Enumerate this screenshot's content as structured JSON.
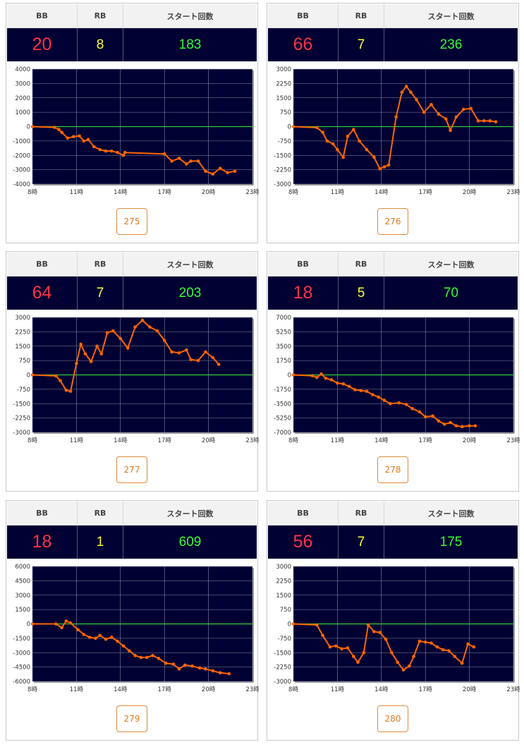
{
  "headers": {
    "bb": "BB",
    "rb": "RB",
    "start": "スタート回数"
  },
  "colors": {
    "bb": "#ff3344",
    "rb": "#ffff33",
    "start": "#33ff33",
    "chart_bg": "#000033",
    "line": "#ff6600",
    "zero_line": "#33cc33"
  },
  "machines": [
    {
      "bb": "20",
      "rb": "8",
      "start": "183",
      "number": "275",
      "chart_data": {
        "type": "line",
        "ylim": [
          -4000,
          4000
        ],
        "yticks": [
          "4000",
          "3000",
          "2000",
          "1000",
          "0",
          "-1000",
          "-2000",
          "-3000",
          "-4000"
        ],
        "xticks": [
          "8時",
          "11時",
          "14時",
          "17時",
          "20時",
          "23時"
        ],
        "points": [
          [
            8,
            0
          ],
          [
            9.5,
            -50
          ],
          [
            9.8,
            -200
          ],
          [
            10,
            -400
          ],
          [
            10.4,
            -800
          ],
          [
            10.8,
            -700
          ],
          [
            11.2,
            -650
          ],
          [
            11.5,
            -1000
          ],
          [
            11.8,
            -900
          ],
          [
            12.2,
            -1400
          ],
          [
            12.6,
            -1600
          ],
          [
            13,
            -1700
          ],
          [
            13.4,
            -1700
          ],
          [
            13.8,
            -1800
          ],
          [
            14.2,
            -2000
          ],
          [
            14.3,
            -1800
          ],
          [
            17,
            -1900
          ],
          [
            17.5,
            -2400
          ],
          [
            18,
            -2200
          ],
          [
            18.5,
            -2600
          ],
          [
            18.8,
            -2400
          ],
          [
            19.3,
            -2400
          ],
          [
            19.8,
            -3100
          ],
          [
            20.3,
            -3300
          ],
          [
            20.8,
            -2900
          ],
          [
            21.3,
            -3200
          ],
          [
            21.8,
            -3100
          ]
        ]
      }
    },
    {
      "bb": "66",
      "rb": "7",
      "start": "236",
      "number": "276",
      "chart_data": {
        "type": "line",
        "ylim": [
          -3000,
          3000
        ],
        "yticks": [
          "3000",
          "2250",
          "1500",
          "750",
          "0",
          "-750",
          "-1500",
          "-2250",
          "-3000"
        ],
        "xticks": [
          "8時",
          "11時",
          "14時",
          "17時",
          "20時",
          "23時"
        ],
        "points": [
          [
            8,
            0
          ],
          [
            9.6,
            -50
          ],
          [
            10,
            -300
          ],
          [
            10.3,
            -750
          ],
          [
            10.7,
            -900
          ],
          [
            11,
            -1200
          ],
          [
            11.4,
            -1600
          ],
          [
            11.7,
            -500
          ],
          [
            12.1,
            -150
          ],
          [
            12.5,
            -750
          ],
          [
            13,
            -1200
          ],
          [
            13.5,
            -1600
          ],
          [
            13.9,
            -2200
          ],
          [
            14.2,
            -2100
          ],
          [
            14.5,
            -2000
          ],
          [
            15,
            500
          ],
          [
            15.4,
            1800
          ],
          [
            15.7,
            2100
          ],
          [
            16,
            1800
          ],
          [
            16.4,
            1400
          ],
          [
            16.9,
            750
          ],
          [
            17.4,
            1150
          ],
          [
            17.9,
            650
          ],
          [
            18.4,
            400
          ],
          [
            18.7,
            -200
          ],
          [
            19.1,
            500
          ],
          [
            19.6,
            900
          ],
          [
            20.1,
            950
          ],
          [
            20.6,
            300
          ],
          [
            21,
            300
          ],
          [
            21.4,
            300
          ],
          [
            21.8,
            250
          ]
        ]
      }
    },
    {
      "bb": "64",
      "rb": "7",
      "start": "203",
      "number": "277",
      "chart_data": {
        "type": "line",
        "ylim": [
          -3000,
          3000
        ],
        "yticks": [
          "3000",
          "2250",
          "1500",
          "750",
          "0",
          "-750",
          "-1500",
          "-2250",
          "-3000"
        ],
        "xticks": [
          "8時",
          "11時",
          "14時",
          "17時",
          "20時",
          "23時"
        ],
        "points": [
          [
            8,
            0
          ],
          [
            9.6,
            -50
          ],
          [
            9.9,
            -300
          ],
          [
            10.3,
            -800
          ],
          [
            10.6,
            -850
          ],
          [
            11,
            600
          ],
          [
            11.3,
            1600
          ],
          [
            11.6,
            1100
          ],
          [
            12,
            700
          ],
          [
            12.4,
            1500
          ],
          [
            12.7,
            1100
          ],
          [
            13.1,
            2200
          ],
          [
            13.5,
            2300
          ],
          [
            14,
            1900
          ],
          [
            14.5,
            1400
          ],
          [
            15,
            2500
          ],
          [
            15.5,
            2850
          ],
          [
            16,
            2500
          ],
          [
            16.5,
            2300
          ],
          [
            17,
            1800
          ],
          [
            17.5,
            1200
          ],
          [
            18,
            1150
          ],
          [
            18.5,
            1300
          ],
          [
            18.8,
            800
          ],
          [
            19.3,
            750
          ],
          [
            19.8,
            1200
          ],
          [
            20.3,
            900
          ],
          [
            20.7,
            550
          ]
        ]
      }
    },
    {
      "bb": "18",
      "rb": "5",
      "start": "70",
      "number": "278",
      "chart_data": {
        "type": "line",
        "ylim": [
          -7000,
          7000
        ],
        "yticks": [
          "7000",
          "5250",
          "3500",
          "1750",
          "0",
          "-1750",
          "-3500",
          "-5250",
          "-7000"
        ],
        "xticks": [
          "8時",
          "11時",
          "14時",
          "17時",
          "20時",
          "23時"
        ],
        "points": [
          [
            8,
            0
          ],
          [
            9.3,
            -100
          ],
          [
            9.6,
            -300
          ],
          [
            9.9,
            100
          ],
          [
            10.2,
            -400
          ],
          [
            10.6,
            -600
          ],
          [
            11,
            -1000
          ],
          [
            11.4,
            -1100
          ],
          [
            11.8,
            -1400
          ],
          [
            12.2,
            -1800
          ],
          [
            12.6,
            -1900
          ],
          [
            13,
            -2000
          ],
          [
            13.4,
            -2400
          ],
          [
            13.8,
            -2700
          ],
          [
            14.2,
            -3100
          ],
          [
            14.6,
            -3500
          ],
          [
            15.2,
            -3400
          ],
          [
            15.7,
            -3600
          ],
          [
            16.1,
            -4100
          ],
          [
            16.6,
            -4500
          ],
          [
            17,
            -5100
          ],
          [
            17.5,
            -5000
          ],
          [
            17.9,
            -5600
          ],
          [
            18.3,
            -6000
          ],
          [
            18.7,
            -5800
          ],
          [
            19.1,
            -6200
          ],
          [
            19.5,
            -6300
          ],
          [
            20,
            -6200
          ],
          [
            20.4,
            -6200
          ]
        ]
      }
    },
    {
      "bb": "18",
      "rb": "1",
      "start": "609",
      "number": "279",
      "chart_data": {
        "type": "line",
        "ylim": [
          -6000,
          6000
        ],
        "yticks": [
          "6000",
          "4500",
          "3000",
          "1500",
          "0",
          "-1500",
          "-3000",
          "-4500",
          "-6000"
        ],
        "xticks": [
          "8時",
          "11時",
          "14時",
          "17時",
          "20時",
          "23時"
        ],
        "points": [
          [
            8,
            0
          ],
          [
            9.6,
            0
          ],
          [
            10,
            -400
          ],
          [
            10.3,
            300
          ],
          [
            10.6,
            100
          ],
          [
            11.1,
            -600
          ],
          [
            11.5,
            -1100
          ],
          [
            11.9,
            -1400
          ],
          [
            12.3,
            -1500
          ],
          [
            12.6,
            -1200
          ],
          [
            13,
            -1600
          ],
          [
            13.4,
            -1400
          ],
          [
            13.8,
            -1800
          ],
          [
            14.2,
            -2300
          ],
          [
            14.6,
            -2800
          ],
          [
            15,
            -3300
          ],
          [
            15.4,
            -3500
          ],
          [
            15.8,
            -3500
          ],
          [
            16.2,
            -3300
          ],
          [
            16.6,
            -3600
          ],
          [
            17.1,
            -4100
          ],
          [
            17.6,
            -4200
          ],
          [
            18,
            -4700
          ],
          [
            18.4,
            -4300
          ],
          [
            18.9,
            -4400
          ],
          [
            19.4,
            -4600
          ],
          [
            19.8,
            -4700
          ],
          [
            20.3,
            -4900
          ],
          [
            20.8,
            -5100
          ],
          [
            21.4,
            -5200
          ]
        ]
      }
    },
    {
      "bb": "56",
      "rb": "7",
      "start": "175",
      "number": "280",
      "chart_data": {
        "type": "line",
        "ylim": [
          -3000,
          3000
        ],
        "yticks": [
          "3000",
          "2250",
          "1500",
          "750",
          "0",
          "-750",
          "-1500",
          "-2250",
          "-3000"
        ],
        "xticks": [
          "8時",
          "11時",
          "14時",
          "17時",
          "20時",
          "23時"
        ],
        "points": [
          [
            8,
            0
          ],
          [
            9.6,
            -50
          ],
          [
            10,
            -600
          ],
          [
            10.5,
            -1200
          ],
          [
            10.9,
            -1150
          ],
          [
            11.3,
            -1300
          ],
          [
            11.7,
            -1250
          ],
          [
            12.1,
            -1700
          ],
          [
            12.4,
            -2000
          ],
          [
            12.8,
            -1500
          ],
          [
            13.1,
            -50
          ],
          [
            13.5,
            -400
          ],
          [
            13.9,
            -450
          ],
          [
            14.3,
            -800
          ],
          [
            14.7,
            -1500
          ],
          [
            15.1,
            -2000
          ],
          [
            15.5,
            -2400
          ],
          [
            15.9,
            -2200
          ],
          [
            16.2,
            -1700
          ],
          [
            16.6,
            -900
          ],
          [
            17,
            -950
          ],
          [
            17.4,
            -1000
          ],
          [
            17.8,
            -1200
          ],
          [
            18.2,
            -1350
          ],
          [
            18.6,
            -1400
          ],
          [
            19,
            -1700
          ],
          [
            19.5,
            -2050
          ],
          [
            19.9,
            -1050
          ],
          [
            20.3,
            -1200
          ]
        ]
      }
    }
  ]
}
